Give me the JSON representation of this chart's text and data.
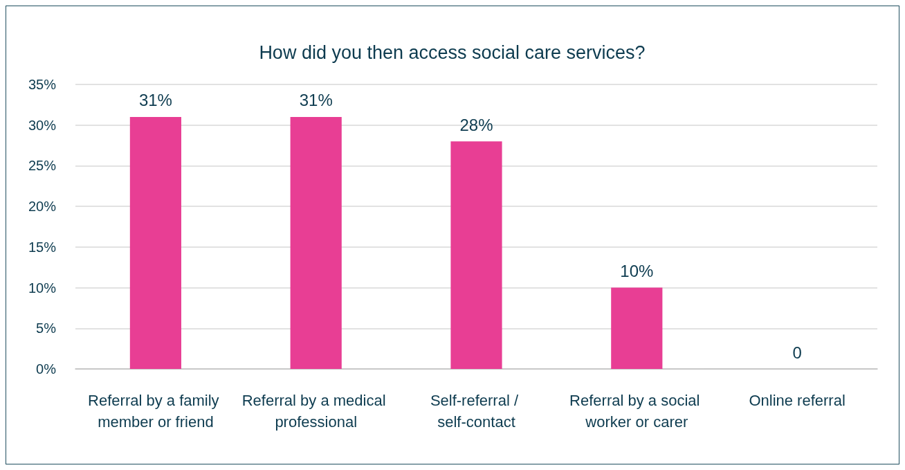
{
  "chart_data": {
    "type": "bar",
    "title": "How did you then access social care services?",
    "categories": [
      "Referral by a family member or friend",
      "Referral by a medical professional",
      "Self-referral / self-contact",
      "Referral by a social worker or carer",
      "Online referral"
    ],
    "values": [
      31,
      31,
      28,
      10,
      0
    ],
    "value_labels": [
      "31%",
      "31%",
      "28%",
      "10%",
      "0"
    ],
    "color": "#e83e94",
    "ylim": [
      0,
      35
    ],
    "yticks": [
      {
        "value": 0,
        "label": "0%"
      },
      {
        "value": 5,
        "label": "5%"
      },
      {
        "value": 10,
        "label": "10%"
      },
      {
        "value": 15,
        "label": "15%"
      },
      {
        "value": 20,
        "label": "20%"
      },
      {
        "value": 25,
        "label": "25%"
      },
      {
        "value": 30,
        "label": "30%"
      },
      {
        "value": 35,
        "label": "35%"
      }
    ],
    "grid": "y"
  }
}
